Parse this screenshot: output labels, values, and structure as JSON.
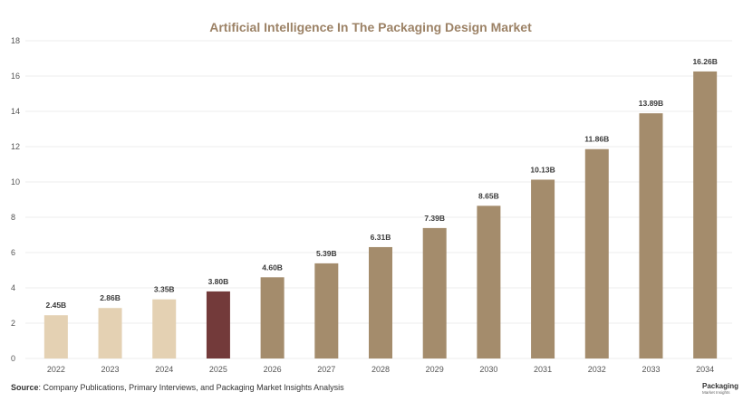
{
  "colors": {
    "title": "#9c8266",
    "light_bar": "#e4d1b3",
    "highlight_bar": "#733a3a",
    "main_bar": "#a48c6c",
    "grid": "#ececec"
  },
  "source": {
    "label": "Source",
    "text": ": Company Publications, Primary Interviews, and Packaging Market Insights Analysis"
  },
  "logo": {
    "name": "Packaging",
    "tagline": "Market Insights",
    "icon": "box-icon"
  },
  "chart_data": {
    "type": "bar",
    "title": "Artificial Intelligence In The Packaging Design Market",
    "xlabel": "",
    "ylabel": "",
    "ylim": [
      0,
      18
    ],
    "yticks": [
      0,
      2,
      4,
      6,
      8,
      10,
      12,
      14,
      16,
      18
    ],
    "grid": "horizontal",
    "categories": [
      "2022",
      "2023",
      "2024",
      "2025",
      "2026",
      "2027",
      "2028",
      "2029",
      "2030",
      "2031",
      "2032",
      "2033",
      "2034"
    ],
    "values": [
      2.45,
      2.86,
      3.35,
      3.8,
      4.6,
      5.39,
      6.31,
      7.39,
      8.65,
      10.13,
      11.86,
      13.89,
      16.26
    ],
    "data_labels": [
      "2.45B",
      "2.86B",
      "3.35B",
      "3.80B",
      "4.60B",
      "5.39B",
      "6.31B",
      "7.39B",
      "8.65B",
      "10.13B",
      "11.86B",
      "13.89B",
      "16.26B"
    ],
    "bar_colors": [
      "#e4d1b3",
      "#e4d1b3",
      "#e4d1b3",
      "#733a3a",
      "#a48c6c",
      "#a48c6c",
      "#a48c6c",
      "#a48c6c",
      "#a48c6c",
      "#a48c6c",
      "#a48c6c",
      "#a48c6c",
      "#a48c6c"
    ]
  }
}
